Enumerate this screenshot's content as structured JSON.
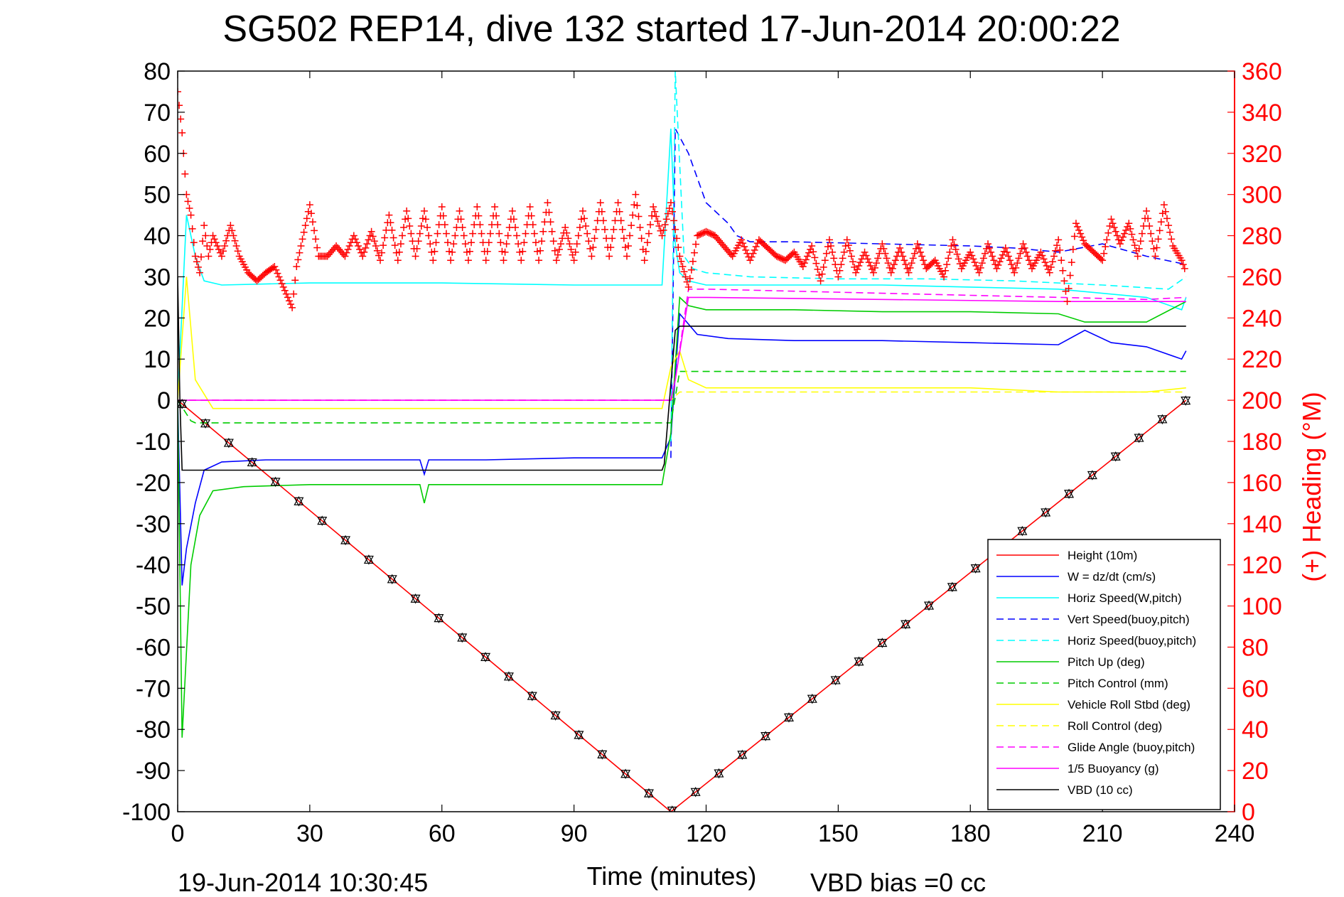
{
  "chart_data": {
    "type": "line",
    "title": "SG502 REP14, dive 132 started 17-Jun-2014 20:00:22",
    "xlabel": "Time (minutes)",
    "ylabel_right": "(+) Heading (°M)",
    "xlim": [
      0,
      240
    ],
    "ylim": [
      -100,
      80
    ],
    "ylim_right": [
      0,
      360
    ],
    "x_ticks": [
      "0",
      "30",
      "60",
      "90",
      "120",
      "150",
      "180",
      "210",
      "240"
    ],
    "y_ticks": [
      "80",
      "70",
      "60",
      "50",
      "40",
      "30",
      "20",
      "10",
      "0",
      "-10",
      "-20",
      "-30",
      "-40",
      "-50",
      "-60",
      "-70",
      "-80",
      "-90",
      "-100"
    ],
    "y_ticks_right": [
      "360",
      "340",
      "320",
      "300",
      "280",
      "260",
      "240",
      "220",
      "200",
      "180",
      "160",
      "140",
      "120",
      "100",
      "80",
      "60",
      "40",
      "20",
      "0"
    ],
    "grid": false,
    "legend_position": "bottom-right",
    "footer_left": "19-Jun-2014 10:30:45",
    "footer_right": "VBD bias =0 cc",
    "colors": {
      "red": "#ff0000",
      "blue": "#0000ff",
      "cyan": "#00ffff",
      "green": "#00cc00",
      "yellow": "#ffff00",
      "magenta": "#ff00ff",
      "black": "#000000"
    },
    "series": [
      {
        "name": "Height (10m)",
        "color": "#ff0000",
        "dash": "solid",
        "x": [
          0,
          112,
          229
        ],
        "y": [
          0,
          -100,
          0
        ]
      },
      {
        "name": "W = dz/dt (cm/s)",
        "color": "#0000ff",
        "dash": "solid",
        "x": [
          0,
          1,
          2,
          4,
          6,
          10,
          20,
          40,
          55,
          56,
          57,
          70,
          90,
          110,
          112,
          114,
          118,
          125,
          140,
          160,
          180,
          200,
          206,
          212,
          220,
          228,
          229
        ],
        "y": [
          0,
          -45,
          -36,
          -25,
          -17,
          -15,
          -14.5,
          -14.5,
          -14.5,
          -18,
          -14.5,
          -14.5,
          -14,
          -14,
          -9,
          21,
          16,
          15,
          14.5,
          14.5,
          14,
          13.5,
          17,
          14,
          13,
          10,
          12
        ]
      },
      {
        "name": "Horiz Speed(W,pitch)",
        "color": "#00ffff",
        "dash": "solid",
        "x": [
          0,
          2,
          4,
          6,
          10,
          30,
          60,
          90,
          110,
          112,
          113,
          114,
          116,
          120,
          140,
          160,
          180,
          200,
          220,
          228,
          229
        ],
        "y": [
          0,
          45,
          35,
          29,
          28,
          28.5,
          28.5,
          28,
          28,
          66,
          38,
          31,
          29,
          28,
          28,
          28,
          27.5,
          27,
          25,
          22,
          25
        ]
      },
      {
        "name": "Vert Speed(buoy,pitch)",
        "color": "#0000ff",
        "dash": "dashed",
        "x": [
          112,
          113,
          116,
          120,
          125,
          127,
          130,
          140,
          160,
          180,
          190,
          200,
          210,
          220,
          229
        ],
        "y": [
          -14,
          66,
          60,
          48,
          43,
          40,
          38.5,
          38.5,
          38,
          37.5,
          37,
          36,
          38,
          35,
          33
        ]
      },
      {
        "name": "Horiz Speed(buoy,pitch)",
        "color": "#00ffff",
        "dash": "dashed",
        "x": [
          112,
          113,
          115,
          117,
          120,
          130,
          150,
          170,
          190,
          210,
          225,
          229
        ],
        "y": [
          -10,
          80,
          35,
          32,
          31,
          30,
          29.5,
          29.5,
          29,
          28,
          27,
          30
        ]
      },
      {
        "name": "Pitch Up (deg)",
        "color": "#00cc00",
        "dash": "solid",
        "x": [
          0,
          1,
          3,
          5,
          8,
          15,
          30,
          55,
          56,
          57,
          90,
          110,
          112,
          114,
          116,
          120,
          140,
          160,
          180,
          200,
          206,
          220,
          229
        ],
        "y": [
          0,
          -82,
          -40,
          -28,
          -22,
          -21,
          -20.5,
          -20.5,
          -25,
          -20.5,
          -20.5,
          -20.5,
          -8,
          25,
          23,
          22,
          22,
          21.5,
          21.5,
          21,
          19,
          19,
          24
        ]
      },
      {
        "name": "Pitch Control (mm)",
        "color": "#00cc00",
        "dash": "dashed",
        "x": [
          0,
          3,
          4,
          110,
          112,
          114,
          115,
          229
        ],
        "y": [
          0,
          -5,
          -5.5,
          -5.5,
          -5.5,
          7,
          7,
          7
        ]
      },
      {
        "name": "Vehicle Roll Stbd (deg)",
        "color": "#ffff00",
        "dash": "solid",
        "x": [
          0,
          2,
          4,
          8,
          30,
          60,
          90,
          110,
          112,
          114,
          116,
          120,
          150,
          180,
          200,
          220,
          229
        ],
        "y": [
          0,
          30,
          5,
          -2,
          -2,
          -2,
          -2,
          -2,
          8,
          12,
          5,
          3,
          3,
          3,
          2,
          2,
          3
        ]
      },
      {
        "name": "Roll Control (deg)",
        "color": "#ffff00",
        "dash": "dashed",
        "x": [
          0,
          110,
          112,
          114,
          229
        ],
        "y": [
          0,
          0,
          0,
          2,
          2
        ]
      },
      {
        "name": "Glide Angle (buoy,pitch)",
        "color": "#ff00ff",
        "dash": "dashed",
        "x": [
          0,
          112,
          113,
          116,
          120,
          140,
          160,
          180,
          200,
          220,
          229
        ],
        "y": [
          0,
          0,
          5,
          27,
          27,
          26.5,
          26,
          25.5,
          25,
          24.5,
          25
        ]
      },
      {
        "name": "1/5 Buoyancy (g)",
        "color": "#ff00ff",
        "dash": "solid",
        "x": [
          0,
          112,
          113,
          116,
          120,
          160,
          200,
          229
        ],
        "y": [
          0,
          0,
          5,
          25,
          25,
          24.5,
          24,
          24
        ]
      },
      {
        "name": "VBD (10 cc)",
        "color": "#000000",
        "dash": "solid",
        "x": [
          0,
          0.5,
          1,
          110,
          110.5,
          113,
          114,
          229
        ],
        "y": [
          30,
          0,
          -17,
          -17,
          -15.5,
          17,
          18,
          18
        ]
      }
    ],
    "heading_series": {
      "name": "(+) Heading",
      "color": "#ff0000",
      "marker": "+",
      "axis": "right",
      "x": [
        0,
        1,
        2,
        3,
        4,
        5,
        6,
        7,
        8,
        10,
        12,
        14,
        16,
        18,
        20,
        22,
        24,
        26,
        27,
        30,
        32,
        34,
        36,
        38,
        40,
        42,
        44,
        46,
        48,
        50,
        52,
        54,
        56,
        58,
        60,
        62,
        64,
        66,
        68,
        70,
        72,
        74,
        76,
        78,
        80,
        82,
        84,
        86,
        88,
        90,
        92,
        94,
        96,
        98,
        100,
        102,
        104,
        106,
        108,
        110,
        112,
        114,
        116,
        118,
        120,
        122,
        124,
        126,
        128,
        130,
        132,
        134,
        136,
        138,
        140,
        142,
        144,
        146,
        148,
        150,
        152,
        154,
        156,
        158,
        160,
        162,
        164,
        166,
        168,
        170,
        172,
        174,
        176,
        178,
        180,
        182,
        184,
        186,
        188,
        190,
        192,
        194,
        196,
        198,
        200,
        202,
        204,
        206,
        208,
        210,
        212,
        214,
        216,
        218,
        220,
        222,
        224,
        226,
        228,
        229
      ],
      "y": [
        350,
        330,
        300,
        290,
        270,
        262,
        285,
        270,
        280,
        270,
        285,
        270,
        262,
        258,
        262,
        265,
        255,
        245,
        265,
        295,
        270,
        270,
        275,
        270,
        280,
        270,
        282,
        268,
        290,
        268,
        292,
        270,
        292,
        268,
        294,
        268,
        292,
        268,
        294,
        268,
        294,
        268,
        292,
        268,
        294,
        268,
        296,
        268,
        284,
        268,
        292,
        270,
        296,
        270,
        296,
        270,
        300,
        268,
        294,
        280,
        296,
        270,
        255,
        280,
        282,
        280,
        275,
        270,
        278,
        268,
        278,
        274,
        270,
        268,
        272,
        265,
        275,
        258,
        278,
        260,
        278,
        262,
        272,
        262,
        276,
        262,
        274,
        262,
        276,
        264,
        268,
        260,
        278,
        264,
        272,
        262,
        276,
        264,
        274,
        262,
        276,
        264,
        272,
        262,
        278,
        248,
        286,
        276,
        272,
        268,
        288,
        276,
        286,
        270,
        292,
        270,
        295,
        275,
        268,
        262
      ]
    }
  }
}
